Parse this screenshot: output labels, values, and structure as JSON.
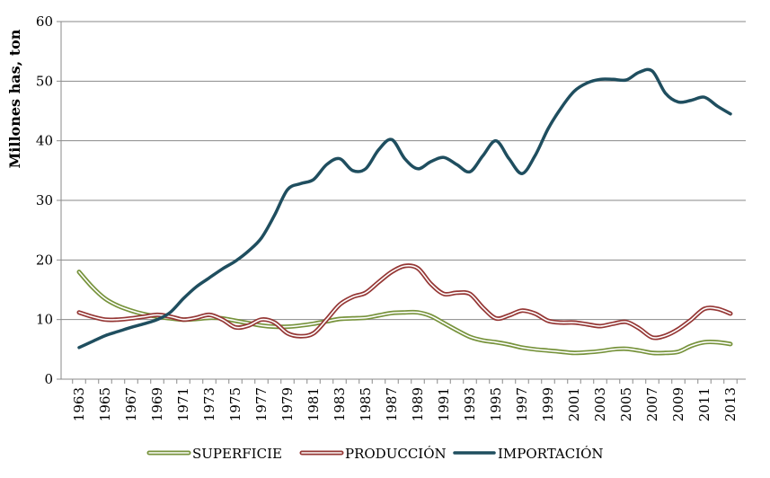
{
  "chart_data": {
    "type": "line",
    "ylabel": "Millones has, ton",
    "xlabel": "",
    "ylim": [
      0,
      60
    ],
    "yticks": [
      "0",
      "10",
      "20",
      "30",
      "40",
      "50",
      "60"
    ],
    "x": [
      1963,
      1964,
      1965,
      1966,
      1967,
      1968,
      1969,
      1970,
      1971,
      1972,
      1973,
      1974,
      1975,
      1976,
      1977,
      1978,
      1979,
      1980,
      1981,
      1982,
      1983,
      1984,
      1985,
      1986,
      1987,
      1988,
      1989,
      1990,
      1991,
      1992,
      1993,
      1994,
      1995,
      1996,
      1997,
      1998,
      1999,
      2000,
      2001,
      2002,
      2003,
      2004,
      2005,
      2006,
      2007,
      2008,
      2009,
      2010,
      2011,
      2012,
      2013
    ],
    "xticks": [
      "1963",
      "1965",
      "1967",
      "1969",
      "1971",
      "1973",
      "1975",
      "1977",
      "1979",
      "1981",
      "1983",
      "1985",
      "1987",
      "1989",
      "1991",
      "1993",
      "1995",
      "1997",
      "1999",
      "2001",
      "2003",
      "2005",
      "2007",
      "2009",
      "2011",
      "2013"
    ],
    "grid": "horizontal",
    "legend_position": "bottom",
    "series": [
      {
        "name": "SUPERFICIE",
        "color": "#77933c",
        "style": "double",
        "values": [
          18.0,
          15.5,
          13.5,
          12.3,
          11.5,
          10.9,
          10.5,
          10.2,
          10.0,
          10.1,
          10.3,
          10.2,
          9.8,
          9.4,
          9.0,
          8.8,
          8.8,
          9.0,
          9.3,
          9.7,
          10.1,
          10.2,
          10.3,
          10.7,
          11.1,
          11.2,
          11.2,
          10.6,
          9.4,
          8.2,
          7.1,
          6.5,
          6.2,
          5.8,
          5.3,
          5.0,
          4.8,
          4.6,
          4.4,
          4.5,
          4.7,
          5.0,
          5.1,
          4.8,
          4.4,
          4.4,
          4.6,
          5.6,
          6.2,
          6.2,
          5.9
        ]
      },
      {
        "name": "PRODUCCIÓN",
        "color": "#953735",
        "style": "double",
        "values": [
          11.2,
          10.5,
          10.0,
          10.0,
          10.2,
          10.5,
          10.8,
          10.5,
          10.0,
          10.3,
          10.8,
          10.0,
          8.7,
          9.0,
          10.0,
          9.5,
          7.7,
          7.2,
          7.7,
          10.0,
          12.5,
          13.8,
          14.5,
          16.3,
          18.0,
          19.0,
          18.6,
          16.0,
          14.3,
          14.5,
          14.3,
          12.0,
          10.2,
          10.7,
          11.5,
          11.0,
          9.8,
          9.5,
          9.5,
          9.2,
          8.9,
          9.3,
          9.6,
          8.5,
          7.0,
          7.3,
          8.4,
          10.0,
          11.8,
          11.8,
          11.0
        ]
      },
      {
        "name": "IMPORTACIÓN",
        "color": "#1f4e5f",
        "style": "solid",
        "values": [
          5.3,
          6.3,
          7.3,
          8.0,
          8.7,
          9.3,
          10.0,
          11.2,
          13.5,
          15.5,
          17.0,
          18.5,
          19.8,
          21.5,
          23.7,
          27.5,
          31.8,
          32.8,
          33.5,
          36.0,
          37.0,
          35.0,
          35.3,
          38.5,
          40.2,
          37.0,
          35.3,
          36.5,
          37.2,
          36.0,
          34.8,
          37.5,
          40.0,
          37.0,
          34.5,
          37.5,
          42.0,
          45.5,
          48.3,
          49.7,
          50.3,
          50.3,
          50.2,
          51.5,
          51.7,
          48.0,
          46.5,
          46.8,
          47.3,
          45.8,
          44.5
        ]
      }
    ]
  }
}
